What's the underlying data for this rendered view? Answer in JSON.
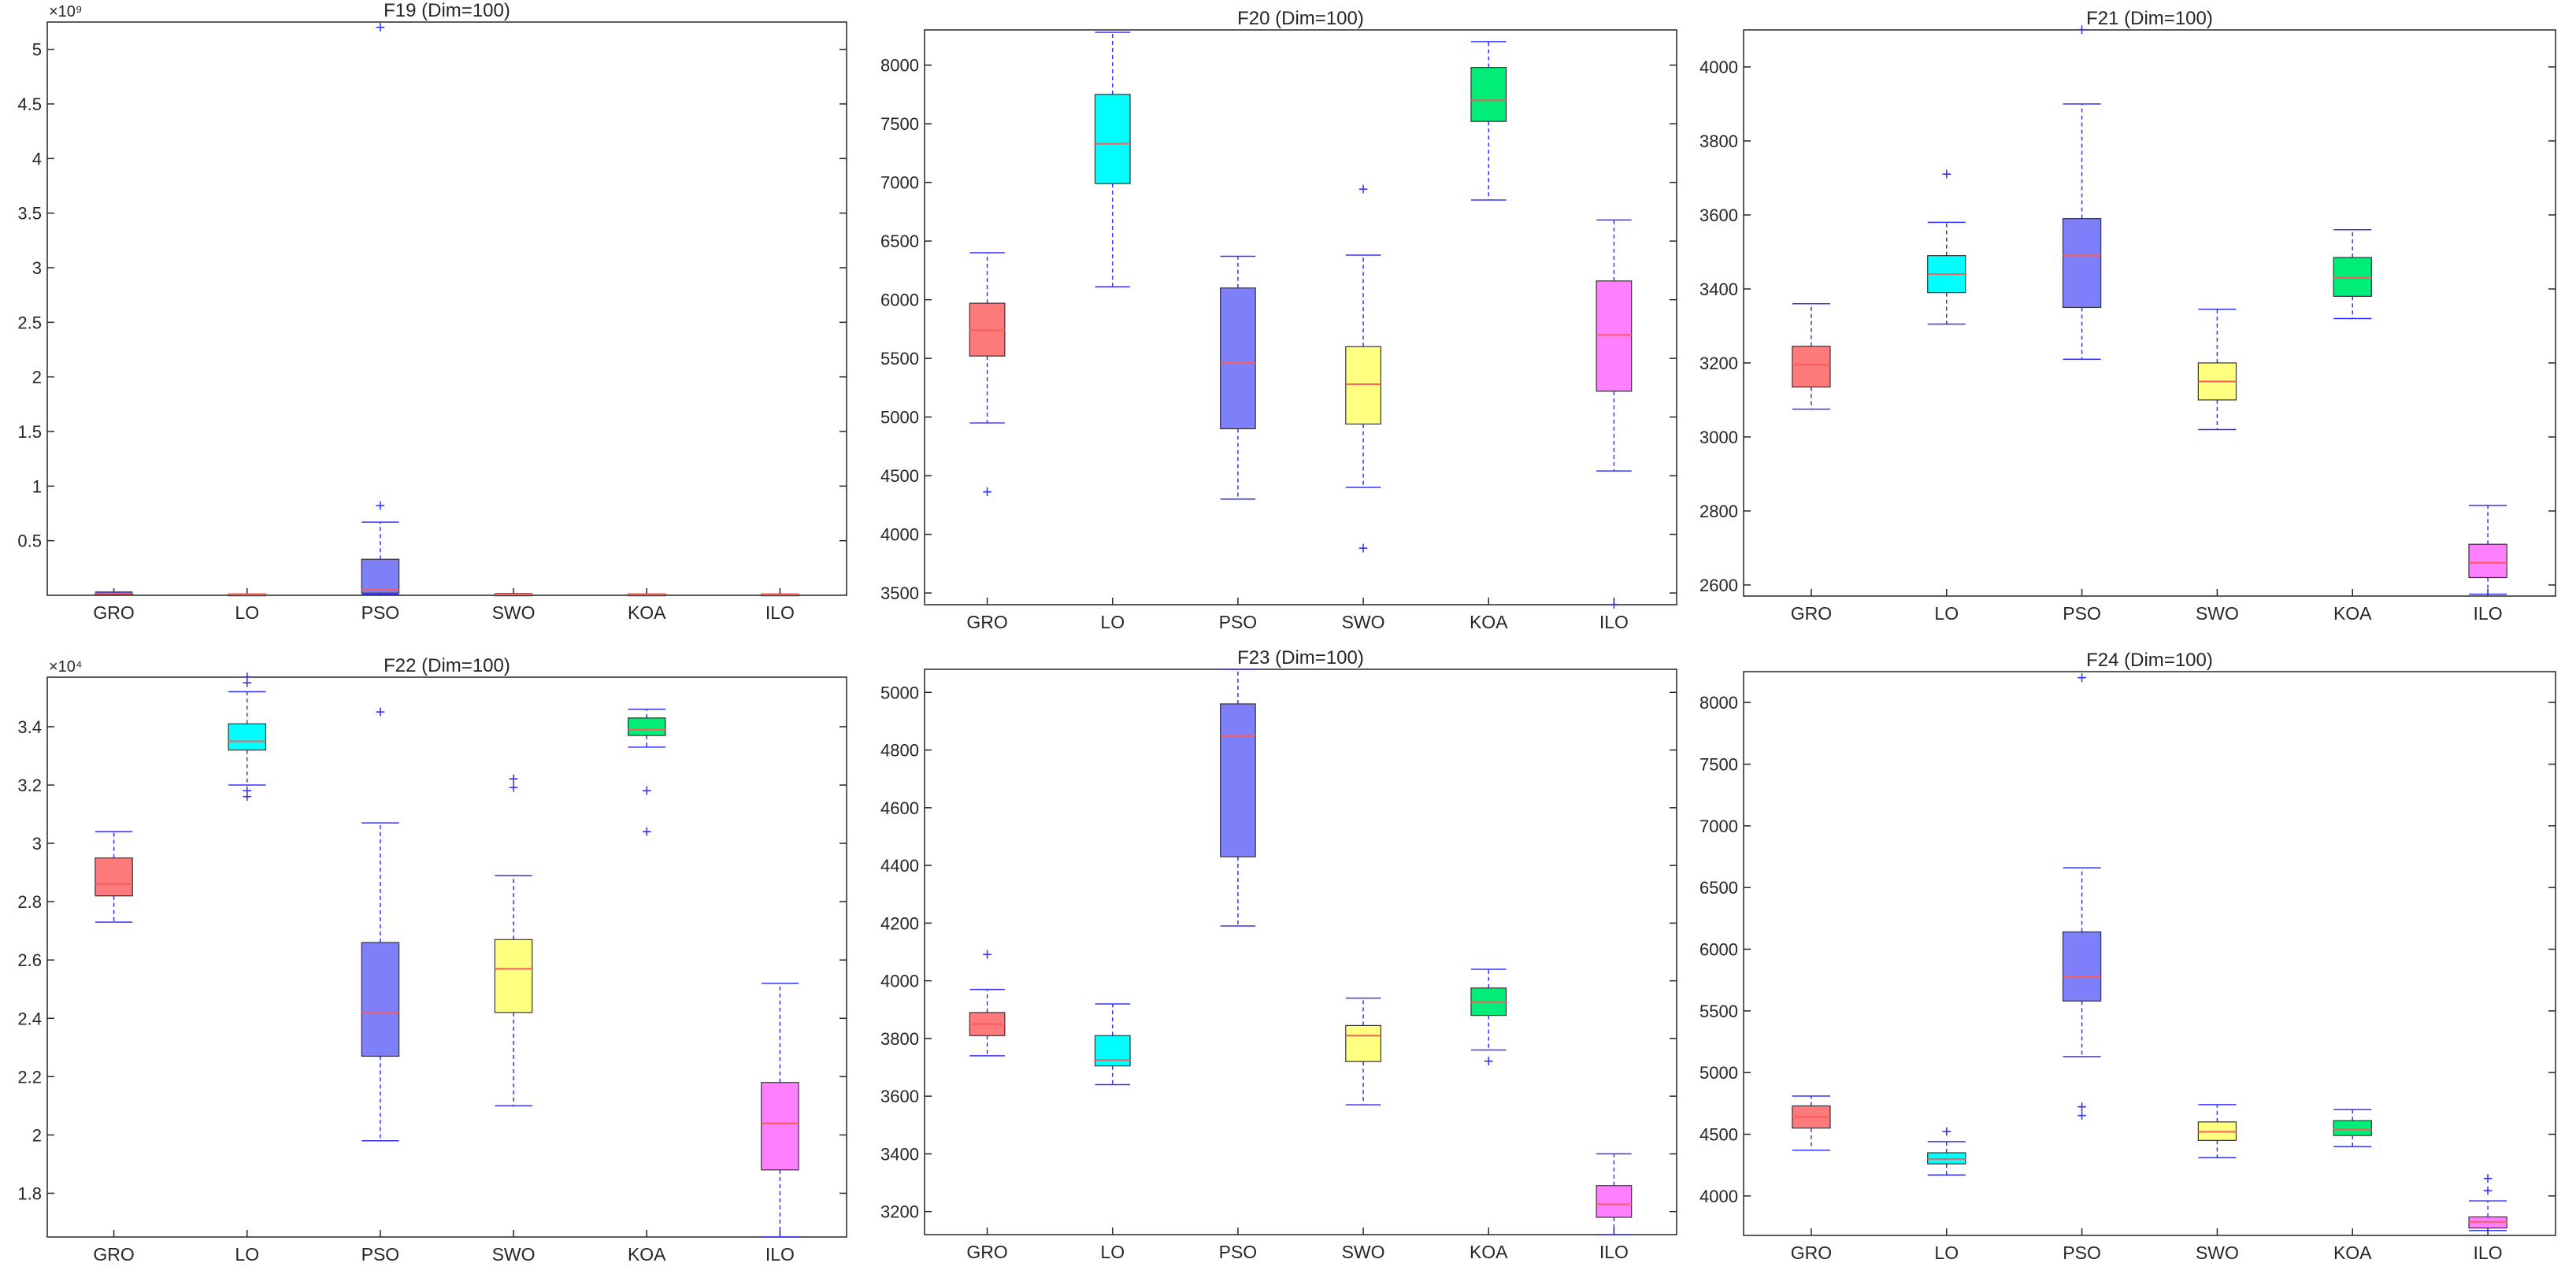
{
  "figure": {
    "layout": "2x3 grid of box plots"
  },
  "colors": {
    "GRO": "#ff7a7a",
    "LO": "#00ffff",
    "PSO": "#7f7ffa",
    "SWO": "#ffff80",
    "KOA": "#00ee77",
    "ILO": "#ff80ff",
    "whisker": "#3333ff",
    "median": "#ff5a5a"
  },
  "chart_data": [
    {
      "type": "box",
      "title": "F19 (Dim=100)",
      "categories": [
        "GRO",
        "LO",
        "PSO",
        "SWO",
        "KOA",
        "ILO"
      ],
      "ylim": [
        0,
        5.25
      ],
      "yticks": [
        0.5,
        1,
        1.5,
        2,
        2.5,
        3,
        3.5,
        4,
        4.5,
        5
      ],
      "ytick_labels": [
        "0.5",
        "1",
        "1.5",
        "2",
        "2.5",
        "3",
        "3.5",
        "4",
        "4.5",
        "5"
      ],
      "exponent": "×10⁹",
      "boxes": [
        {
          "name": "GRO",
          "wlo": 0.005,
          "q1": 0.01,
          "med": 0.015,
          "q3": 0.02,
          "whi": 0.03,
          "outliers": []
        },
        {
          "name": "LO",
          "wlo": 0.004,
          "q1": 0.006,
          "med": 0.008,
          "q3": 0.01,
          "whi": 0.012,
          "outliers": []
        },
        {
          "name": "PSO",
          "wlo": 0.01,
          "q1": 0.02,
          "med": 0.05,
          "q3": 0.33,
          "whi": 0.67,
          "outliers": [
            0.82,
            5.2
          ]
        },
        {
          "name": "SWO",
          "wlo": 0.004,
          "q1": 0.006,
          "med": 0.008,
          "q3": 0.01,
          "whi": 0.015,
          "outliers": []
        },
        {
          "name": "KOA",
          "wlo": 0.004,
          "q1": 0.006,
          "med": 0.008,
          "q3": 0.01,
          "whi": 0.012,
          "outliers": []
        },
        {
          "name": "ILO",
          "wlo": 0.004,
          "q1": 0.006,
          "med": 0.008,
          "q3": 0.01,
          "whi": 0.012,
          "outliers": []
        }
      ]
    },
    {
      "type": "box",
      "title": "F20 (Dim=100)",
      "categories": [
        "GRO",
        "LO",
        "PSO",
        "SWO",
        "KOA",
        "ILO"
      ],
      "ylim": [
        3400,
        8300
      ],
      "yticks": [
        3500,
        4000,
        4500,
        5000,
        5500,
        6000,
        6500,
        7000,
        7500,
        8000
      ],
      "ytick_labels": [
        "3500",
        "4000",
        "4500",
        "5000",
        "5500",
        "6000",
        "6500",
        "7000",
        "7500",
        "8000"
      ],
      "exponent": "",
      "boxes": [
        {
          "name": "GRO",
          "wlo": 4950,
          "q1": 5520,
          "med": 5740,
          "q3": 5970,
          "whi": 6400,
          "outliers": [
            4360
          ]
        },
        {
          "name": "LO",
          "wlo": 6110,
          "q1": 6990,
          "med": 7330,
          "q3": 7750,
          "whi": 8280,
          "outliers": []
        },
        {
          "name": "PSO",
          "wlo": 4300,
          "q1": 4900,
          "med": 5460,
          "q3": 6100,
          "whi": 6370,
          "outliers": []
        },
        {
          "name": "SWO",
          "wlo": 4400,
          "q1": 4940,
          "med": 5280,
          "q3": 5600,
          "whi": 6380,
          "outliers": [
            6940,
            3880
          ]
        },
        {
          "name": "KOA",
          "wlo": 6850,
          "q1": 7520,
          "med": 7700,
          "q3": 7980,
          "whi": 8200,
          "outliers": []
        },
        {
          "name": "ILO",
          "wlo": 4540,
          "q1": 5220,
          "med": 5700,
          "q3": 6160,
          "whi": 6680,
          "outliers": [
            3400
          ]
        }
      ]
    },
    {
      "type": "box",
      "title": "F21 (Dim=100)",
      "categories": [
        "GRO",
        "LO",
        "PSO",
        "SWO",
        "KOA",
        "ILO"
      ],
      "ylim": [
        2570,
        4100
      ],
      "yticks": [
        2600,
        2800,
        3000,
        3200,
        3400,
        3600,
        3800,
        4000
      ],
      "ytick_labels": [
        "2600",
        "2800",
        "3000",
        "3200",
        "3400",
        "3600",
        "3800",
        "4000"
      ],
      "exponent": "",
      "boxes": [
        {
          "name": "GRO",
          "wlo": 3075,
          "q1": 3135,
          "med": 3195,
          "q3": 3245,
          "whi": 3360,
          "outliers": []
        },
        {
          "name": "LO",
          "wlo": 3305,
          "q1": 3390,
          "med": 3440,
          "q3": 3490,
          "whi": 3580,
          "outliers": [
            3710
          ]
        },
        {
          "name": "PSO",
          "wlo": 3210,
          "q1": 3350,
          "med": 3490,
          "q3": 3590,
          "whi": 3900,
          "outliers": [
            4100
          ]
        },
        {
          "name": "SWO",
          "wlo": 3020,
          "q1": 3100,
          "med": 3150,
          "q3": 3200,
          "whi": 3345,
          "outliers": []
        },
        {
          "name": "KOA",
          "wlo": 3320,
          "q1": 3380,
          "med": 3430,
          "q3": 3485,
          "whi": 3560,
          "outliers": []
        },
        {
          "name": "ILO",
          "wlo": 2575,
          "q1": 2620,
          "med": 2660,
          "q3": 2710,
          "whi": 2815,
          "outliers": []
        }
      ]
    },
    {
      "type": "box",
      "title": "F22 (Dim=100)",
      "categories": [
        "GRO",
        "LO",
        "PSO",
        "SWO",
        "KOA",
        "ILO"
      ],
      "ylim": [
        1.65,
        3.57
      ],
      "yticks": [
        1.8,
        2,
        2.2,
        2.4,
        2.6,
        2.8,
        3,
        3.2,
        3.4
      ],
      "ytick_labels": [
        "1.8",
        "2",
        "2.2",
        "2.4",
        "2.6",
        "2.8",
        "3",
        "3.2",
        "3.4"
      ],
      "exponent": "×10⁴",
      "boxes": [
        {
          "name": "GRO",
          "wlo": 2.73,
          "q1": 2.82,
          "med": 2.86,
          "q3": 2.95,
          "whi": 3.04,
          "outliers": []
        },
        {
          "name": "LO",
          "wlo": 3.2,
          "q1": 3.32,
          "med": 3.35,
          "q3": 3.41,
          "whi": 3.52,
          "outliers": [
            3.55,
            3.57,
            3.18,
            3.16
          ]
        },
        {
          "name": "PSO",
          "wlo": 1.98,
          "q1": 2.27,
          "med": 2.42,
          "q3": 2.66,
          "whi": 3.07,
          "outliers": [
            3.45
          ]
        },
        {
          "name": "SWO",
          "wlo": 2.1,
          "q1": 2.42,
          "med": 2.57,
          "q3": 2.67,
          "whi": 2.89,
          "outliers": [
            3.22,
            3.19
          ]
        },
        {
          "name": "KOA",
          "wlo": 3.33,
          "q1": 3.37,
          "med": 3.39,
          "q3": 3.43,
          "whi": 3.46,
          "outliers": [
            3.18,
            3.04
          ]
        },
        {
          "name": "ILO",
          "wlo": 1.65,
          "q1": 1.88,
          "med": 2.04,
          "q3": 2.18,
          "whi": 2.52,
          "outliers": []
        }
      ]
    },
    {
      "type": "box",
      "title": "F23 (Dim=100)",
      "categories": [
        "GRO",
        "LO",
        "PSO",
        "SWO",
        "KOA",
        "ILO"
      ],
      "ylim": [
        3120,
        5080
      ],
      "yticks": [
        3200,
        3400,
        3600,
        3800,
        4000,
        4200,
        4400,
        4600,
        4800,
        5000
      ],
      "ytick_labels": [
        "3200",
        "3400",
        "3600",
        "3800",
        "4000",
        "4200",
        "4400",
        "4600",
        "4800",
        "5000"
      ],
      "exponent": "",
      "boxes": [
        {
          "name": "GRO",
          "wlo": 3740,
          "q1": 3810,
          "med": 3850,
          "q3": 3890,
          "whi": 3970,
          "outliers": [
            4090
          ]
        },
        {
          "name": "LO",
          "wlo": 3640,
          "q1": 3705,
          "med": 3725,
          "q3": 3810,
          "whi": 3920,
          "outliers": []
        },
        {
          "name": "PSO",
          "wlo": 4190,
          "q1": 4430,
          "med": 4850,
          "q3": 4960,
          "whi": 5080,
          "outliers": []
        },
        {
          "name": "SWO",
          "wlo": 3570,
          "q1": 3720,
          "med": 3810,
          "q3": 3845,
          "whi": 3940,
          "outliers": []
        },
        {
          "name": "KOA",
          "wlo": 3760,
          "q1": 3880,
          "med": 3925,
          "q3": 3975,
          "whi": 4040,
          "outliers": [
            3720
          ]
        },
        {
          "name": "ILO",
          "wlo": 3120,
          "q1": 3180,
          "med": 3225,
          "q3": 3290,
          "whi": 3400,
          "outliers": []
        }
      ]
    },
    {
      "type": "box",
      "title": "F24 (Dim=100)",
      "categories": [
        "GRO",
        "LO",
        "PSO",
        "SWO",
        "KOA",
        "ILO"
      ],
      "ylim": [
        3680,
        8250
      ],
      "yticks": [
        4000,
        4500,
        5000,
        5500,
        6000,
        6500,
        7000,
        7500,
        8000
      ],
      "ytick_labels": [
        "4000",
        "4500",
        "5000",
        "5500",
        "6000",
        "6500",
        "7000",
        "7500",
        "8000"
      ],
      "exponent": "",
      "boxes": [
        {
          "name": "GRO",
          "wlo": 4370,
          "q1": 4550,
          "med": 4640,
          "q3": 4730,
          "whi": 4810,
          "outliers": []
        },
        {
          "name": "LO",
          "wlo": 4170,
          "q1": 4260,
          "med": 4300,
          "q3": 4350,
          "whi": 4440,
          "outliers": [
            4520
          ]
        },
        {
          "name": "PSO",
          "wlo": 5130,
          "q1": 5580,
          "med": 5780,
          "q3": 6140,
          "whi": 6660,
          "outliers": [
            4720,
            4650,
            8200
          ]
        },
        {
          "name": "SWO",
          "wlo": 4310,
          "q1": 4450,
          "med": 4520,
          "q3": 4600,
          "whi": 4740,
          "outliers": []
        },
        {
          "name": "KOA",
          "wlo": 4400,
          "q1": 4490,
          "med": 4540,
          "q3": 4610,
          "whi": 4700,
          "outliers": []
        },
        {
          "name": "ILO",
          "wlo": 3720,
          "q1": 3740,
          "med": 3790,
          "q3": 3830,
          "whi": 3960,
          "outliers": [
            4040,
            4140
          ]
        }
      ]
    }
  ]
}
